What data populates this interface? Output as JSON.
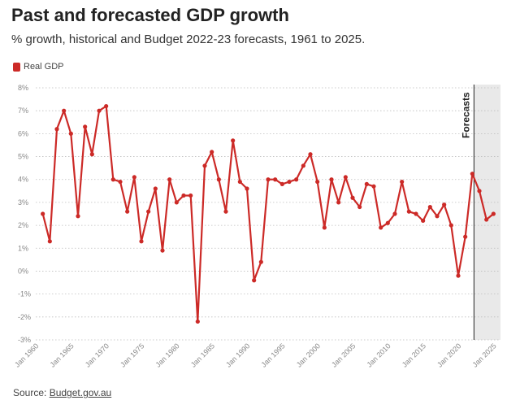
{
  "chart_data": {
    "type": "line",
    "title": "Past and forecasted GDP growth",
    "subtitle": "% growth, historical and Budget 2022-23 forecasts, 1961 to 2025.",
    "legend": {
      "label": "Real GDP",
      "color": "#cc2a27",
      "placement": "top-left"
    },
    "source_prefix": "Source: ",
    "source_link": "Budget.gov.au",
    "annotation": "Forecasts",
    "forecast_range": [
      2022,
      2025
    ],
    "xlim": [
      1960,
      2026
    ],
    "ylim": [
      -3,
      8
    ],
    "grid": true,
    "y_ticks": [
      {
        "value": 8,
        "label": "8%"
      },
      {
        "value": 7,
        "label": "7%"
      },
      {
        "value": 6,
        "label": "6%"
      },
      {
        "value": 5,
        "label": "5%"
      },
      {
        "value": 4,
        "label": "4%"
      },
      {
        "value": 3,
        "label": "3%"
      },
      {
        "value": 2,
        "label": "2%"
      },
      {
        "value": 1,
        "label": "1%"
      },
      {
        "value": 0,
        "label": "0%"
      },
      {
        "value": -1,
        "label": "-1%"
      },
      {
        "value": -2,
        "label": "-2%"
      },
      {
        "value": -3,
        "label": "-3%"
      }
    ],
    "x_ticks": [
      {
        "value": 1960,
        "label": "Jan 1960"
      },
      {
        "value": 1965,
        "label": "Jan 1965"
      },
      {
        "value": 1970,
        "label": "Jan 1970"
      },
      {
        "value": 1975,
        "label": "Jan 1975"
      },
      {
        "value": 1980,
        "label": "Jan 1980"
      },
      {
        "value": 1985,
        "label": "Jan 1985"
      },
      {
        "value": 1990,
        "label": "Jan 1990"
      },
      {
        "value": 1995,
        "label": "Jan 1995"
      },
      {
        "value": 2000,
        "label": "Jan 2000"
      },
      {
        "value": 2005,
        "label": "Jan 2005"
      },
      {
        "value": 2010,
        "label": "Jan 2010"
      },
      {
        "value": 2015,
        "label": "Jan 2015"
      },
      {
        "value": 2020,
        "label": "Jan 2020"
      },
      {
        "value": 2025,
        "label": "Jan 2025"
      }
    ],
    "series": [
      {
        "name": "Real GDP",
        "color": "#cc2a27",
        "x": [
          1961,
          1962,
          1963,
          1964,
          1965,
          1966,
          1967,
          1968,
          1969,
          1970,
          1971,
          1972,
          1973,
          1974,
          1975,
          1976,
          1977,
          1978,
          1979,
          1980,
          1981,
          1982,
          1983,
          1984,
          1985,
          1986,
          1987,
          1988,
          1989,
          1990,
          1991,
          1992,
          1993,
          1994,
          1995,
          1996,
          1997,
          1998,
          1999,
          2000,
          2001,
          2002,
          2003,
          2004,
          2005,
          2006,
          2007,
          2008,
          2009,
          2010,
          2011,
          2012,
          2013,
          2014,
          2015,
          2016,
          2017,
          2018,
          2019,
          2020,
          2021,
          2022,
          2023,
          2024,
          2025
        ],
        "values": [
          2.5,
          1.3,
          6.2,
          7.0,
          6.0,
          2.4,
          6.3,
          5.1,
          7.0,
          7.2,
          4.0,
          3.9,
          2.6,
          4.1,
          1.3,
          2.6,
          3.6,
          0.9,
          4.0,
          3.0,
          3.3,
          3.3,
          -2.2,
          4.6,
          5.2,
          4.0,
          2.6,
          5.7,
          3.9,
          3.6,
          -0.4,
          0.4,
          4.0,
          4.0,
          3.8,
          3.9,
          4.0,
          4.6,
          5.1,
          3.9,
          1.9,
          4.0,
          3.0,
          4.1,
          3.2,
          2.8,
          3.8,
          3.7,
          1.9,
          2.1,
          2.5,
          3.9,
          2.6,
          2.5,
          2.2,
          2.8,
          2.4,
          2.9,
          2.0,
          -0.2,
          1.5,
          4.25,
          3.5,
          2.25,
          2.5
        ]
      }
    ]
  }
}
